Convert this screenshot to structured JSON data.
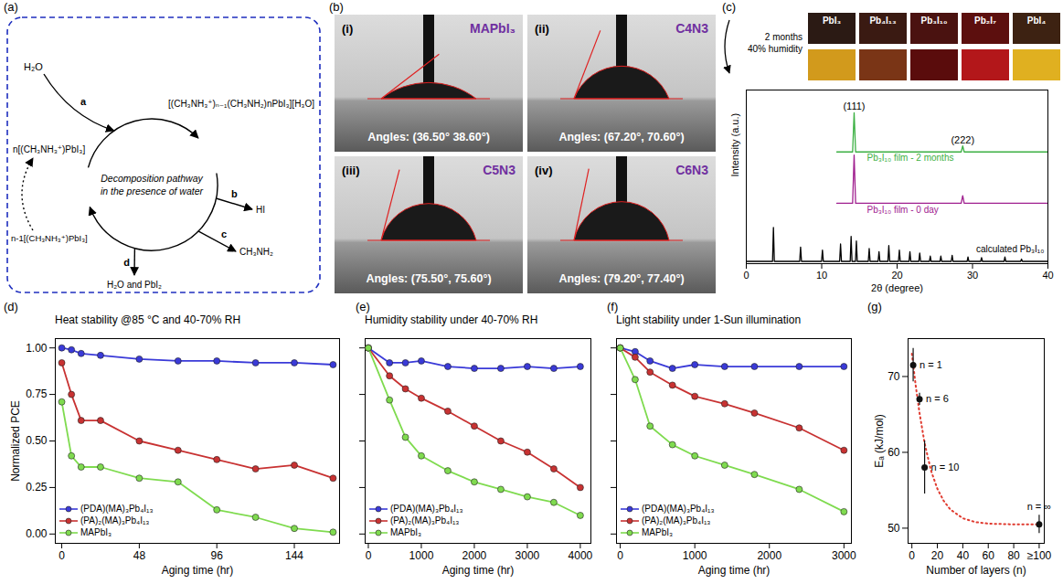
{
  "diagram": {
    "panel": "(a)",
    "water": "H₂O",
    "reactant": "n[(CH₃NH₃⁺)PbI₃]",
    "intermediate": "[(CH₃NH₃⁺)ₙ₋₁(CH₃NH₂)nPbI₃][H₃O]",
    "center_text": "Decomposition pathway in the presence of water",
    "steps": [
      "a",
      "b",
      "c",
      "d"
    ],
    "products": [
      "HI",
      "CH₃NH₂",
      "H₂O and PbI₂"
    ],
    "regenerated": "n-1[(CH₃NH₃⁺)PbI₃]"
  },
  "contact_angle_images": {
    "panel": "(b)",
    "images": [
      {
        "index": "(i)",
        "name": "MAPbI₃",
        "label": "Angles: (36.50° 38.60°)",
        "angles": [
          36.5,
          38.6
        ]
      },
      {
        "index": "(ii)",
        "name": "C4N3",
        "label": "Angles: (67.20°, 70.60°)",
        "angles": [
          67.2,
          70.6
        ]
      },
      {
        "index": "(iii)",
        "name": "C5N3",
        "label": "Angles: (75.50°, 75.60°)",
        "angles": [
          75.5,
          75.6
        ]
      },
      {
        "index": "(iv)",
        "name": "C6N3",
        "label": "Angles: (79.20°, 77.40°)",
        "angles": [
          79.2,
          77.4
        ]
      }
    ]
  },
  "color_photos": {
    "labels": [
      "PbI₃",
      "Pb₄I₁₃",
      "Pb₃I₁₀",
      "Pb₂I₇",
      "PbI₄"
    ],
    "colors": [
      "#2b1a14",
      "#3a1a12",
      "#4a1210",
      "#5c0f0e",
      "#3d2212"
    ],
    "aged_colors": [
      "#d29a1c",
      "#7a3516",
      "#5a0c0c",
      "#b3171a",
      "#e0b020"
    ],
    "note": [
      "2 months",
      "40% humidity"
    ]
  },
  "chart_data": [
    {
      "panel": "(c)",
      "type": "line",
      "xlabel": "2θ (degree)",
      "ylabel": "Intensity (a.u.)",
      "xlim": [
        0,
        40
      ],
      "xticks": [
        0,
        10,
        20,
        30,
        40
      ],
      "ylim": [
        0,
        11.5
      ],
      "yticks": [],
      "tick_labels": "x",
      "series": [
        {
          "name": "Pb₃I₁₀ film - 2 months",
          "color": "#3cb043",
          "x": [
            12,
            14.1,
            14.3,
            14.5,
            28.5,
            28.7,
            28.9,
            40
          ],
          "values": [
            7.4,
            7.4,
            10.0,
            7.4,
            7.4,
            7.8,
            7.4,
            7.4
          ]
        },
        {
          "name": "Pb₃I₁₀ film - 0 day",
          "color": "#a0208f",
          "x": [
            12,
            14.1,
            14.3,
            14.5,
            28.5,
            28.7,
            28.9,
            40
          ],
          "values": [
            4.0,
            4.0,
            7.2,
            4.0,
            4.0,
            4.5,
            4.0,
            4.0
          ]
        },
        {
          "name": "calculated Pb₃I₁₀",
          "color": "#000000",
          "x": [
            0,
            3.48,
            3.6,
            3.72,
            7.08,
            7.2,
            7.32,
            9.98,
            10.1,
            10.22,
            12.38,
            12.5,
            12.62,
            13.78,
            13.9,
            14.02,
            14.48,
            14.6,
            14.72,
            16.18,
            16.3,
            16.42,
            17.48,
            17.6,
            17.72,
            18.78,
            18.9,
            19.02,
            20.18,
            20.3,
            20.42,
            21.58,
            21.7,
            21.82,
            22.88,
            23.0,
            23.12,
            24.28,
            24.4,
            24.52,
            25.68,
            25.8,
            25.92,
            27.18,
            27.3,
            27.42,
            29.28,
            29.4,
            29.52,
            31.08,
            31.2,
            31.32,
            34.18,
            34.3,
            34.42,
            36.38,
            36.5,
            36.62,
            40
          ],
          "values": [
            0.15,
            0.15,
            2.4,
            0.15,
            0.15,
            1.1,
            0.15,
            0.15,
            0.9,
            0.15,
            0.15,
            1.3,
            0.15,
            0.15,
            1.8,
            0.15,
            0.15,
            1.5,
            0.15,
            0.15,
            1.0,
            0.15,
            0.15,
            0.8,
            0.15,
            0.15,
            1.2,
            0.15,
            0.15,
            0.9,
            0.15,
            0.15,
            0.8,
            0.15,
            0.15,
            0.7,
            0.15,
            0.15,
            0.5,
            0.15,
            0.15,
            0.5,
            0.15,
            0.15,
            0.55,
            0.15,
            0.15,
            0.45,
            0.15,
            0.15,
            0.4,
            0.15,
            0.15,
            0.45,
            0.15,
            0.15,
            0.3,
            0.15,
            0.15
          ]
        }
      ],
      "annotations": [
        {
          "text": "(111)",
          "x": 14.3,
          "y": 10.0
        },
        {
          "text": "(222)",
          "x": 28.7,
          "y": 7.8
        }
      ]
    },
    {
      "panel": "(d)",
      "type": "line",
      "title": "Heat stability @85 °C and 40-70% RH",
      "xlabel": "Aging time (hr)",
      "ylabel": "Normalized PCE",
      "x": [
        0,
        6,
        12,
        24,
        48,
        72,
        96,
        120,
        144,
        168
      ],
      "xlim": [
        -4,
        172
      ],
      "xticks": [
        0,
        48,
        96,
        144
      ],
      "ylim": [
        -0.05,
        1.05
      ],
      "yticks": [
        {
          "value": 0,
          "label": "0.00"
        },
        {
          "value": 0.25,
          "label": "0.25"
        },
        {
          "value": 0.5,
          "label": "0.50"
        },
        {
          "value": 0.75,
          "label": "0.75"
        },
        {
          "value": 1,
          "label": "1.00"
        }
      ],
      "legend": "lower left",
      "marker": "circle",
      "series": [
        {
          "name": "(PDA)(MA)₃Pb₄I₁₃",
          "color": "#3a3ad8",
          "values": [
            1.0,
            0.99,
            0.97,
            0.96,
            0.94,
            0.93,
            0.93,
            0.92,
            0.92,
            0.91
          ]
        },
        {
          "name": "(PA)₂(MA)₃Pb₄I₁₃",
          "color": "#c83232",
          "values": [
            0.92,
            0.75,
            0.61,
            0.61,
            0.5,
            0.45,
            0.4,
            0.35,
            0.37,
            0.3
          ]
        },
        {
          "name": "MAPbI₃",
          "color": "#7fdb4f",
          "values": [
            0.71,
            0.42,
            0.36,
            0.36,
            0.3,
            0.28,
            0.13,
            0.09,
            0.03,
            0.01
          ]
        }
      ]
    },
    {
      "panel": "(e)",
      "type": "line",
      "title": "Humidity stability under 40-70% RH",
      "xlabel": "Aging time (hr)",
      "x": [
        0,
        400,
        700,
        1000,
        1500,
        2000,
        2500,
        3000,
        3500,
        4000
      ],
      "xlim": [
        -60,
        4200
      ],
      "xticks": [
        0,
        1000,
        2000,
        3000,
        4000
      ],
      "ylim": [
        -0.05,
        1.05
      ],
      "yticks": [
        0,
        0.25,
        0.5,
        0.75,
        1
      ],
      "tick_labels": "x",
      "legend": "lower left",
      "marker": "circle",
      "series": [
        {
          "name": "(PDA)(MA)₃Pb₄I₁₃",
          "color": "#3a3ad8",
          "values": [
            1.0,
            0.92,
            0.92,
            0.93,
            0.9,
            0.89,
            0.89,
            0.9,
            0.89,
            0.9
          ]
        },
        {
          "name": "(PA)₂(MA)₃Pb₄I₁₃",
          "color": "#c83232",
          "values": [
            1.0,
            0.85,
            0.78,
            0.73,
            0.66,
            0.58,
            0.5,
            0.44,
            0.35,
            0.25
          ]
        },
        {
          "name": "MAPbI₃",
          "color": "#7fdb4f",
          "values": [
            1.0,
            0.72,
            0.52,
            0.42,
            0.34,
            0.28,
            0.24,
            0.2,
            0.17,
            0.1
          ]
        }
      ]
    },
    {
      "panel": "(f)",
      "type": "line",
      "title": "Light stability under 1-Sun illumination",
      "xlabel": "Aging time (hr)",
      "x": [
        0,
        200,
        400,
        700,
        1000,
        1400,
        1800,
        2400,
        3000
      ],
      "xlim": [
        -50,
        3100
      ],
      "xticks": [
        0,
        1000,
        2000,
        3000
      ],
      "ylim": [
        -0.05,
        1.05
      ],
      "yticks": [
        0,
        0.25,
        0.5,
        0.75,
        1
      ],
      "tick_labels": "x",
      "legend": "lower left",
      "marker": "circle",
      "series": [
        {
          "name": "(PDA)(MA)₃Pb₄I₁₃",
          "color": "#3a3ad8",
          "values": [
            1.0,
            0.98,
            0.93,
            0.89,
            0.91,
            0.9,
            0.9,
            0.9,
            0.9
          ]
        },
        {
          "name": "(PA)₂(MA)₃Pb₄I₁₃",
          "color": "#c83232",
          "values": [
            1.0,
            0.95,
            0.87,
            0.8,
            0.74,
            0.7,
            0.65,
            0.57,
            0.45
          ]
        },
        {
          "name": "MAPbI₃",
          "color": "#7fdb4f",
          "values": [
            1.0,
            0.83,
            0.58,
            0.48,
            0.42,
            0.37,
            0.32,
            0.24,
            0.12
          ]
        }
      ]
    },
    {
      "panel": "(g)",
      "type": "scatter",
      "xlabel": "Number of layers (n)",
      "ylabel": "Eₐ (kJ/mol)",
      "xlim": [
        -3,
        104
      ],
      "xticks": [
        0,
        20,
        40,
        60,
        80,
        {
          "value": 100,
          "label": "≥100"
        }
      ],
      "ylim": [
        48,
        75
      ],
      "yticks": [
        50,
        60,
        70
      ],
      "series": [
        {
          "type": "line",
          "color": "#e03c31",
          "line_style": "dotted",
          "x": [
            0,
            3,
            6,
            10,
            15,
            20,
            25,
            30,
            40,
            50,
            60,
            80,
            100
          ],
          "values": [
            73,
            68.8,
            65.2,
            61.2,
            57.6,
            55.2,
            53.6,
            52.5,
            51.3,
            50.8,
            50.6,
            50.5,
            50.5
          ]
        },
        {
          "type": "scatter",
          "color": "#111111",
          "marker": "circle",
          "x": [
            1,
            6,
            10,
            100
          ],
          "values": [
            71.5,
            67,
            58,
            50.5
          ],
          "errors": [
            2.2,
            0.8,
            3.5,
            1.2
          ]
        }
      ],
      "annotations": [
        {
          "text": "n = 1",
          "x": 1,
          "y": 71.5
        },
        {
          "text": "n = 6",
          "x": 6,
          "y": 67
        },
        {
          "text": "n = 10",
          "x": 10,
          "y": 58
        },
        {
          "text": "n = ∞",
          "x": 100,
          "y": 50.5
        }
      ]
    }
  ]
}
